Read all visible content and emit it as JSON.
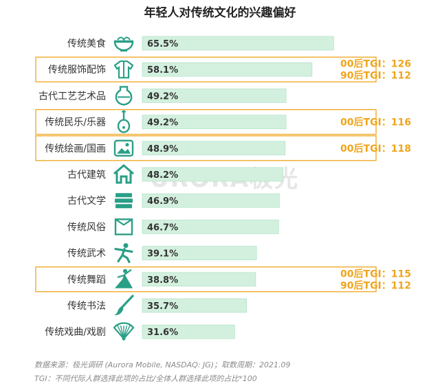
{
  "chart_data": {
    "type": "bar",
    "orientation": "horizontal",
    "title": "年轻人对传统文化的兴趣偏好",
    "categories": [
      "传统美食",
      "传统服饰配饰",
      "古代工艺艺术品",
      "传统民乐/乐器",
      "传统绘画/国画",
      "古代建筑",
      "古代文学",
      "传统风俗",
      "传统武术",
      "传统舞蹈",
      "传统书法",
      "传统戏曲/戏剧"
    ],
    "values": [
      65.5,
      58.1,
      49.2,
      49.2,
      48.9,
      48.2,
      46.9,
      46.7,
      39.1,
      38.8,
      35.7,
      31.6
    ],
    "value_labels": [
      "65.5%",
      "58.1%",
      "49.2%",
      "49.2%",
      "48.9%",
      "48.2%",
      "46.9%",
      "46.7%",
      "39.1%",
      "38.8%",
      "35.7%",
      "31.6%"
    ],
    "icons": [
      "bowl-icon",
      "robe-icon",
      "vase-icon",
      "pipa-icon",
      "painting-icon",
      "house-icon",
      "books-icon",
      "envelope-icon",
      "martial-arts-icon",
      "dancer-icon",
      "brush-icon",
      "fan-icon"
    ],
    "xlim": [
      0,
      100
    ],
    "grid": false,
    "legend": "none",
    "bar_color": "#d3f0df",
    "bar_stroke": "#a8dcbf",
    "icon_color": "#2a9f86",
    "annotations": [
      {
        "category_index": 1,
        "lines": [
          "00后TGI：126",
          "90后TGI：112"
        ]
      },
      {
        "category_index": 3,
        "lines": [
          "00后TGI：116"
        ]
      },
      {
        "category_index": 4,
        "lines": [
          "00后TGI：118"
        ]
      },
      {
        "category_index": 9,
        "lines": [
          "00后TGI：115",
          "90后TGI：112"
        ]
      }
    ],
    "annotation_color": "#f0a51c"
  },
  "watermark": "URORA极光",
  "footer": {
    "source": "数据来源：极光调研 (Aurora Mobile, NASDAQ: JG)；取数周期：2021.09",
    "note": "TGI：不同代际人群选择此项的占比/全体人群选择此项的占比*100"
  }
}
